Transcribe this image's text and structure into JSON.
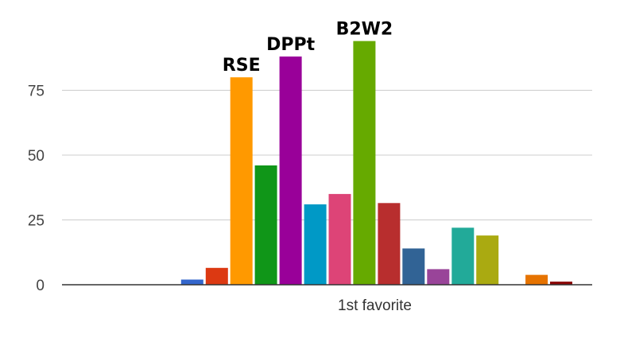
{
  "chart_data": {
    "type": "bar",
    "title": "",
    "xlabel": "1st favorite",
    "ylabel": "",
    "ylim": [
      0,
      100
    ],
    "yticks": [
      0,
      25,
      50,
      75
    ],
    "grid": true,
    "legend": "none",
    "baseline_color": "#333333",
    "grid_color": "#cccccc",
    "series": [
      {
        "value": 0,
        "color": "#3366cc"
      },
      {
        "value": 0,
        "color": "#dc3912"
      },
      {
        "value": 0,
        "color": "#ff9900"
      },
      {
        "value": 0,
        "color": "#109618"
      },
      {
        "value": 2,
        "color": "#3366cc"
      },
      {
        "value": 6.5,
        "color": "#dc3912"
      },
      {
        "value": 80,
        "color": "#ff9900",
        "label": "RSE"
      },
      {
        "value": 46,
        "color": "#109618"
      },
      {
        "value": 88,
        "color": "#990099",
        "label": "DPPt"
      },
      {
        "value": 31,
        "color": "#0099c6"
      },
      {
        "value": 35,
        "color": "#dd4477"
      },
      {
        "value": 94,
        "color": "#66aa00",
        "label": "B2W2"
      },
      {
        "value": 31.5,
        "color": "#b82e2e"
      },
      {
        "value": 14,
        "color": "#316395"
      },
      {
        "value": 6,
        "color": "#994499"
      },
      {
        "value": 22,
        "color": "#22aa99"
      },
      {
        "value": 19,
        "color": "#aaaa11"
      },
      {
        "value": 0,
        "color": "#6633cc"
      },
      {
        "value": 3.8,
        "color": "#e67300"
      },
      {
        "value": 1.2,
        "color": "#8b0707"
      }
    ]
  }
}
